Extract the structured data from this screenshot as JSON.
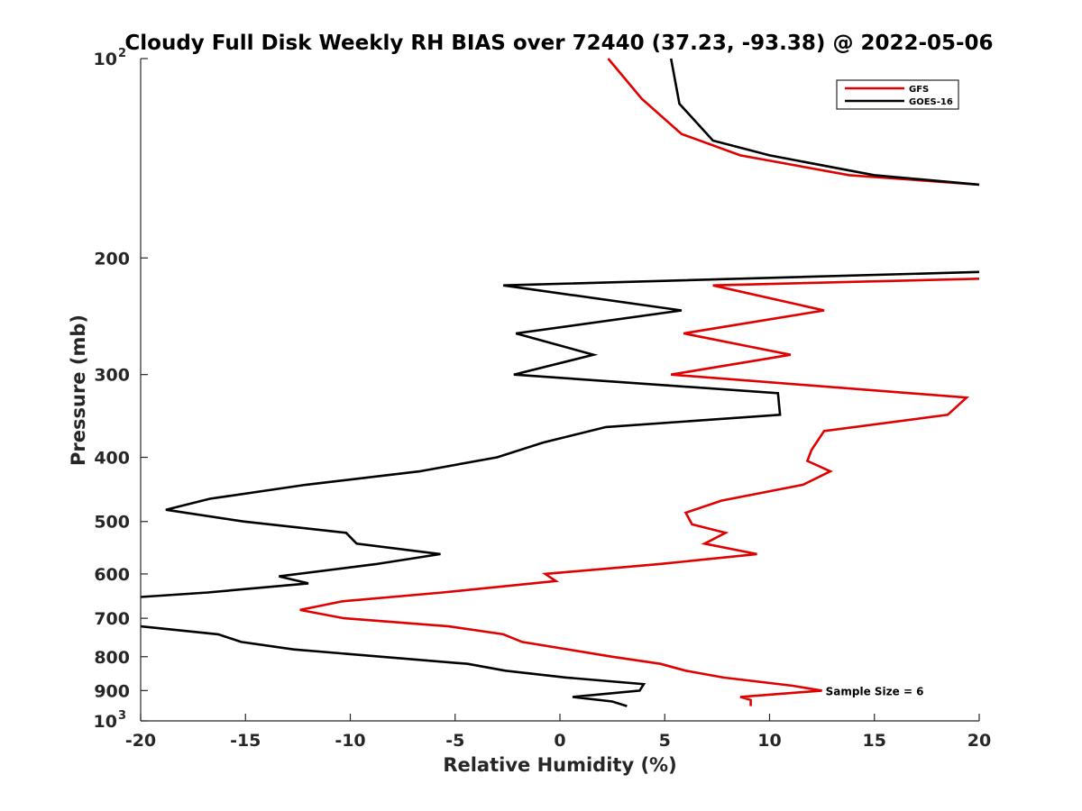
{
  "chart_data": {
    "type": "line",
    "title": "Cloudy Full Disk Weekly RH BIAS over 72440 (37.23, -93.38) @ 2022-05-06",
    "xlabel": "Relative Humidity (%)",
    "ylabel": "Pressure (mb)",
    "xlim": [
      -20,
      20
    ],
    "ylim": [
      100,
      1000
    ],
    "y_scale": "log",
    "y_reversed": true,
    "grid": false,
    "legend_position": "top-right",
    "x_ticks": [
      {
        "value": -20,
        "label": "-20"
      },
      {
        "value": -15,
        "label": "-15"
      },
      {
        "value": -10,
        "label": "-10"
      },
      {
        "value": -5,
        "label": "-5"
      },
      {
        "value": 0,
        "label": "0"
      },
      {
        "value": 5,
        "label": "5"
      },
      {
        "value": 10,
        "label": "10"
      },
      {
        "value": 15,
        "label": "15"
      },
      {
        "value": 20,
        "label": "20"
      }
    ],
    "y_ticks": [
      {
        "value": 100,
        "base": "10",
        "exp": "2"
      },
      {
        "value": 200,
        "label": "200"
      },
      {
        "value": 300,
        "label": "300"
      },
      {
        "value": 400,
        "label": "400"
      },
      {
        "value": 500,
        "label": "500"
      },
      {
        "value": 600,
        "label": "600"
      },
      {
        "value": 700,
        "label": "700"
      },
      {
        "value": 800,
        "label": "800"
      },
      {
        "value": 900,
        "label": "900"
      },
      {
        "value": 1000,
        "base": "10",
        "exp": "3"
      }
    ],
    "series": [
      {
        "name": "GFS",
        "color": "#e00000",
        "points": [
          [
            2.3,
            100
          ],
          [
            3.9,
            115
          ],
          [
            5.8,
            130
          ],
          [
            8.6,
            140
          ],
          [
            13.8,
            150
          ],
          [
            20.0,
            155
          ],
          [
            null,
            null
          ],
          [
            20.0,
            215
          ],
          [
            7.3,
            220
          ],
          [
            12.6,
            240
          ],
          [
            5.9,
            260
          ],
          [
            11.0,
            280
          ],
          [
            5.3,
            300
          ],
          [
            19.4,
            325
          ],
          [
            18.5,
            345
          ],
          [
            12.6,
            365
          ],
          [
            12.0,
            390
          ],
          [
            11.8,
            405
          ],
          [
            12.9,
            420
          ],
          [
            11.6,
            440
          ],
          [
            7.7,
            465
          ],
          [
            6.0,
            485
          ],
          [
            6.3,
            505
          ],
          [
            7.9,
            520
          ],
          [
            6.9,
            540
          ],
          [
            9.4,
            560
          ],
          [
            4.7,
            580
          ],
          [
            -0.7,
            600
          ],
          [
            -0.2,
            615
          ],
          [
            -5.6,
            640
          ],
          [
            -10.4,
            660
          ],
          [
            -12.4,
            680
          ],
          [
            -10.3,
            700
          ],
          [
            -5.3,
            720
          ],
          [
            -2.7,
            740
          ],
          [
            -1.8,
            760
          ],
          [
            2.5,
            800
          ],
          [
            4.8,
            820
          ],
          [
            6.0,
            840
          ],
          [
            7.8,
            860
          ],
          [
            11.1,
            885
          ],
          [
            12.5,
            900
          ],
          [
            8.6,
            920
          ],
          [
            9.1,
            930
          ],
          [
            9.1,
            950
          ]
        ]
      },
      {
        "name": "GOES-16",
        "color": "#000000",
        "points": [
          [
            5.3,
            100
          ],
          [
            5.7,
            117
          ],
          [
            7.3,
            133
          ],
          [
            10.0,
            140
          ],
          [
            15.0,
            150
          ],
          [
            20.0,
            155
          ],
          [
            null,
            null
          ],
          [
            20.0,
            210
          ],
          [
            -2.7,
            220
          ],
          [
            5.8,
            240
          ],
          [
            -2.1,
            260
          ],
          [
            1.6,
            280
          ],
          [
            -2.2,
            300
          ],
          [
            10.4,
            320
          ],
          [
            10.5,
            345
          ],
          [
            2.2,
            360
          ],
          [
            -0.8,
            380
          ],
          [
            -3.0,
            400
          ],
          [
            -6.7,
            420
          ],
          [
            -12.1,
            440
          ],
          [
            -16.7,
            462
          ],
          [
            -18.8,
            480
          ],
          [
            -15.1,
            500
          ],
          [
            -10.2,
            520
          ],
          [
            -9.7,
            540
          ],
          [
            -5.7,
            560
          ],
          [
            -8.8,
            580
          ],
          [
            -13.4,
            605
          ],
          [
            -12.0,
            620
          ],
          [
            -16.8,
            640
          ],
          [
            -20.0,
            650
          ],
          [
            null,
            null
          ],
          [
            -20.0,
            720
          ],
          [
            -16.3,
            740
          ],
          [
            -15.2,
            760
          ],
          [
            -12.7,
            780
          ],
          [
            -4.4,
            820
          ],
          [
            -2.6,
            840
          ],
          [
            0.3,
            860
          ],
          [
            4.0,
            880
          ],
          [
            3.8,
            900
          ],
          [
            0.6,
            920
          ],
          [
            2.5,
            935
          ],
          [
            3.2,
            950
          ]
        ]
      }
    ],
    "annotations": [
      {
        "text": "Sample Size = 6",
        "x": 12.5,
        "y": 900
      }
    ]
  }
}
